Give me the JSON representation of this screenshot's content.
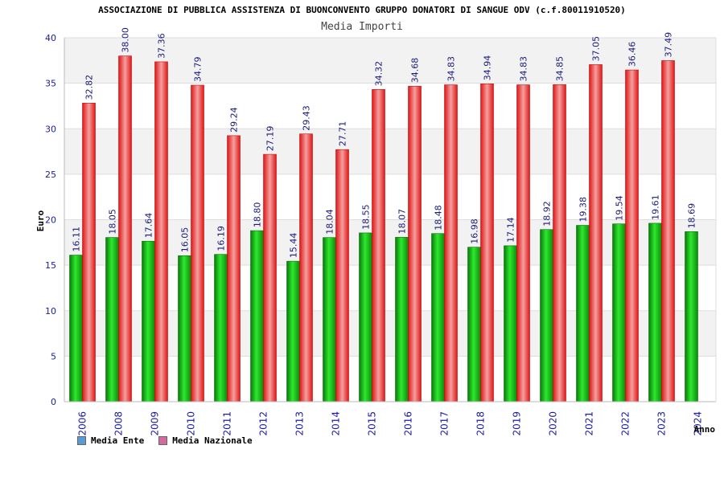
{
  "chart_data": {
    "type": "bar",
    "title": "ASSOCIAZIONE DI PUBBLICA ASSISTENZA DI BUONCONVENTO GRUPPO DONATORI DI SANGUE ODV (c.f.80011910520)",
    "subtitle": "Media Importi",
    "xlabel": "Anno",
    "ylabel": "Euro",
    "ylim": [
      0,
      40
    ],
    "yticks": [
      0,
      5,
      10,
      15,
      20,
      25,
      30,
      35,
      40
    ],
    "grid": true,
    "legend_position": "bottom-left",
    "categories": [
      "2006",
      "2008",
      "2009",
      "2010",
      "2011",
      "2012",
      "2013",
      "2014",
      "2015",
      "2016",
      "2017",
      "2018",
      "2019",
      "2020",
      "2021",
      "2022",
      "2023",
      "2024"
    ],
    "series": [
      {
        "name": "Media Ente",
        "legend_color": "#5b9bd5",
        "bar_color": "#1faa1f",
        "values": [
          16.11,
          18.05,
          17.64,
          16.05,
          16.19,
          18.8,
          15.44,
          18.04,
          18.55,
          18.07,
          18.48,
          16.98,
          17.14,
          18.92,
          19.38,
          19.54,
          19.61,
          18.69
        ],
        "labels": [
          "16.11",
          "18.05",
          "17.64",
          "16.05",
          "16.19",
          "18.80",
          "15.44",
          "18.04",
          "18.55",
          "18.07",
          "18.48",
          "16.98",
          "17.14",
          "18.92",
          "19.38",
          "19.54",
          "19.61",
          "18.69"
        ]
      },
      {
        "name": "Media Nazionale",
        "legend_color": "#d36b9d",
        "bar_color": "#ee2c2c",
        "values": [
          32.82,
          38.0,
          37.36,
          34.79,
          29.24,
          27.19,
          29.43,
          27.71,
          34.32,
          34.68,
          34.83,
          34.94,
          34.83,
          34.85,
          37.05,
          36.46,
          37.49,
          null
        ],
        "labels": [
          "32.82",
          "38.00",
          "37.36",
          "34.79",
          "29.24",
          "27.19",
          "29.43",
          "27.71",
          "34.32",
          "34.68",
          "34.83",
          "34.94",
          "34.83",
          "34.85",
          "37.05",
          "36.46",
          "37.49",
          null
        ]
      }
    ]
  }
}
